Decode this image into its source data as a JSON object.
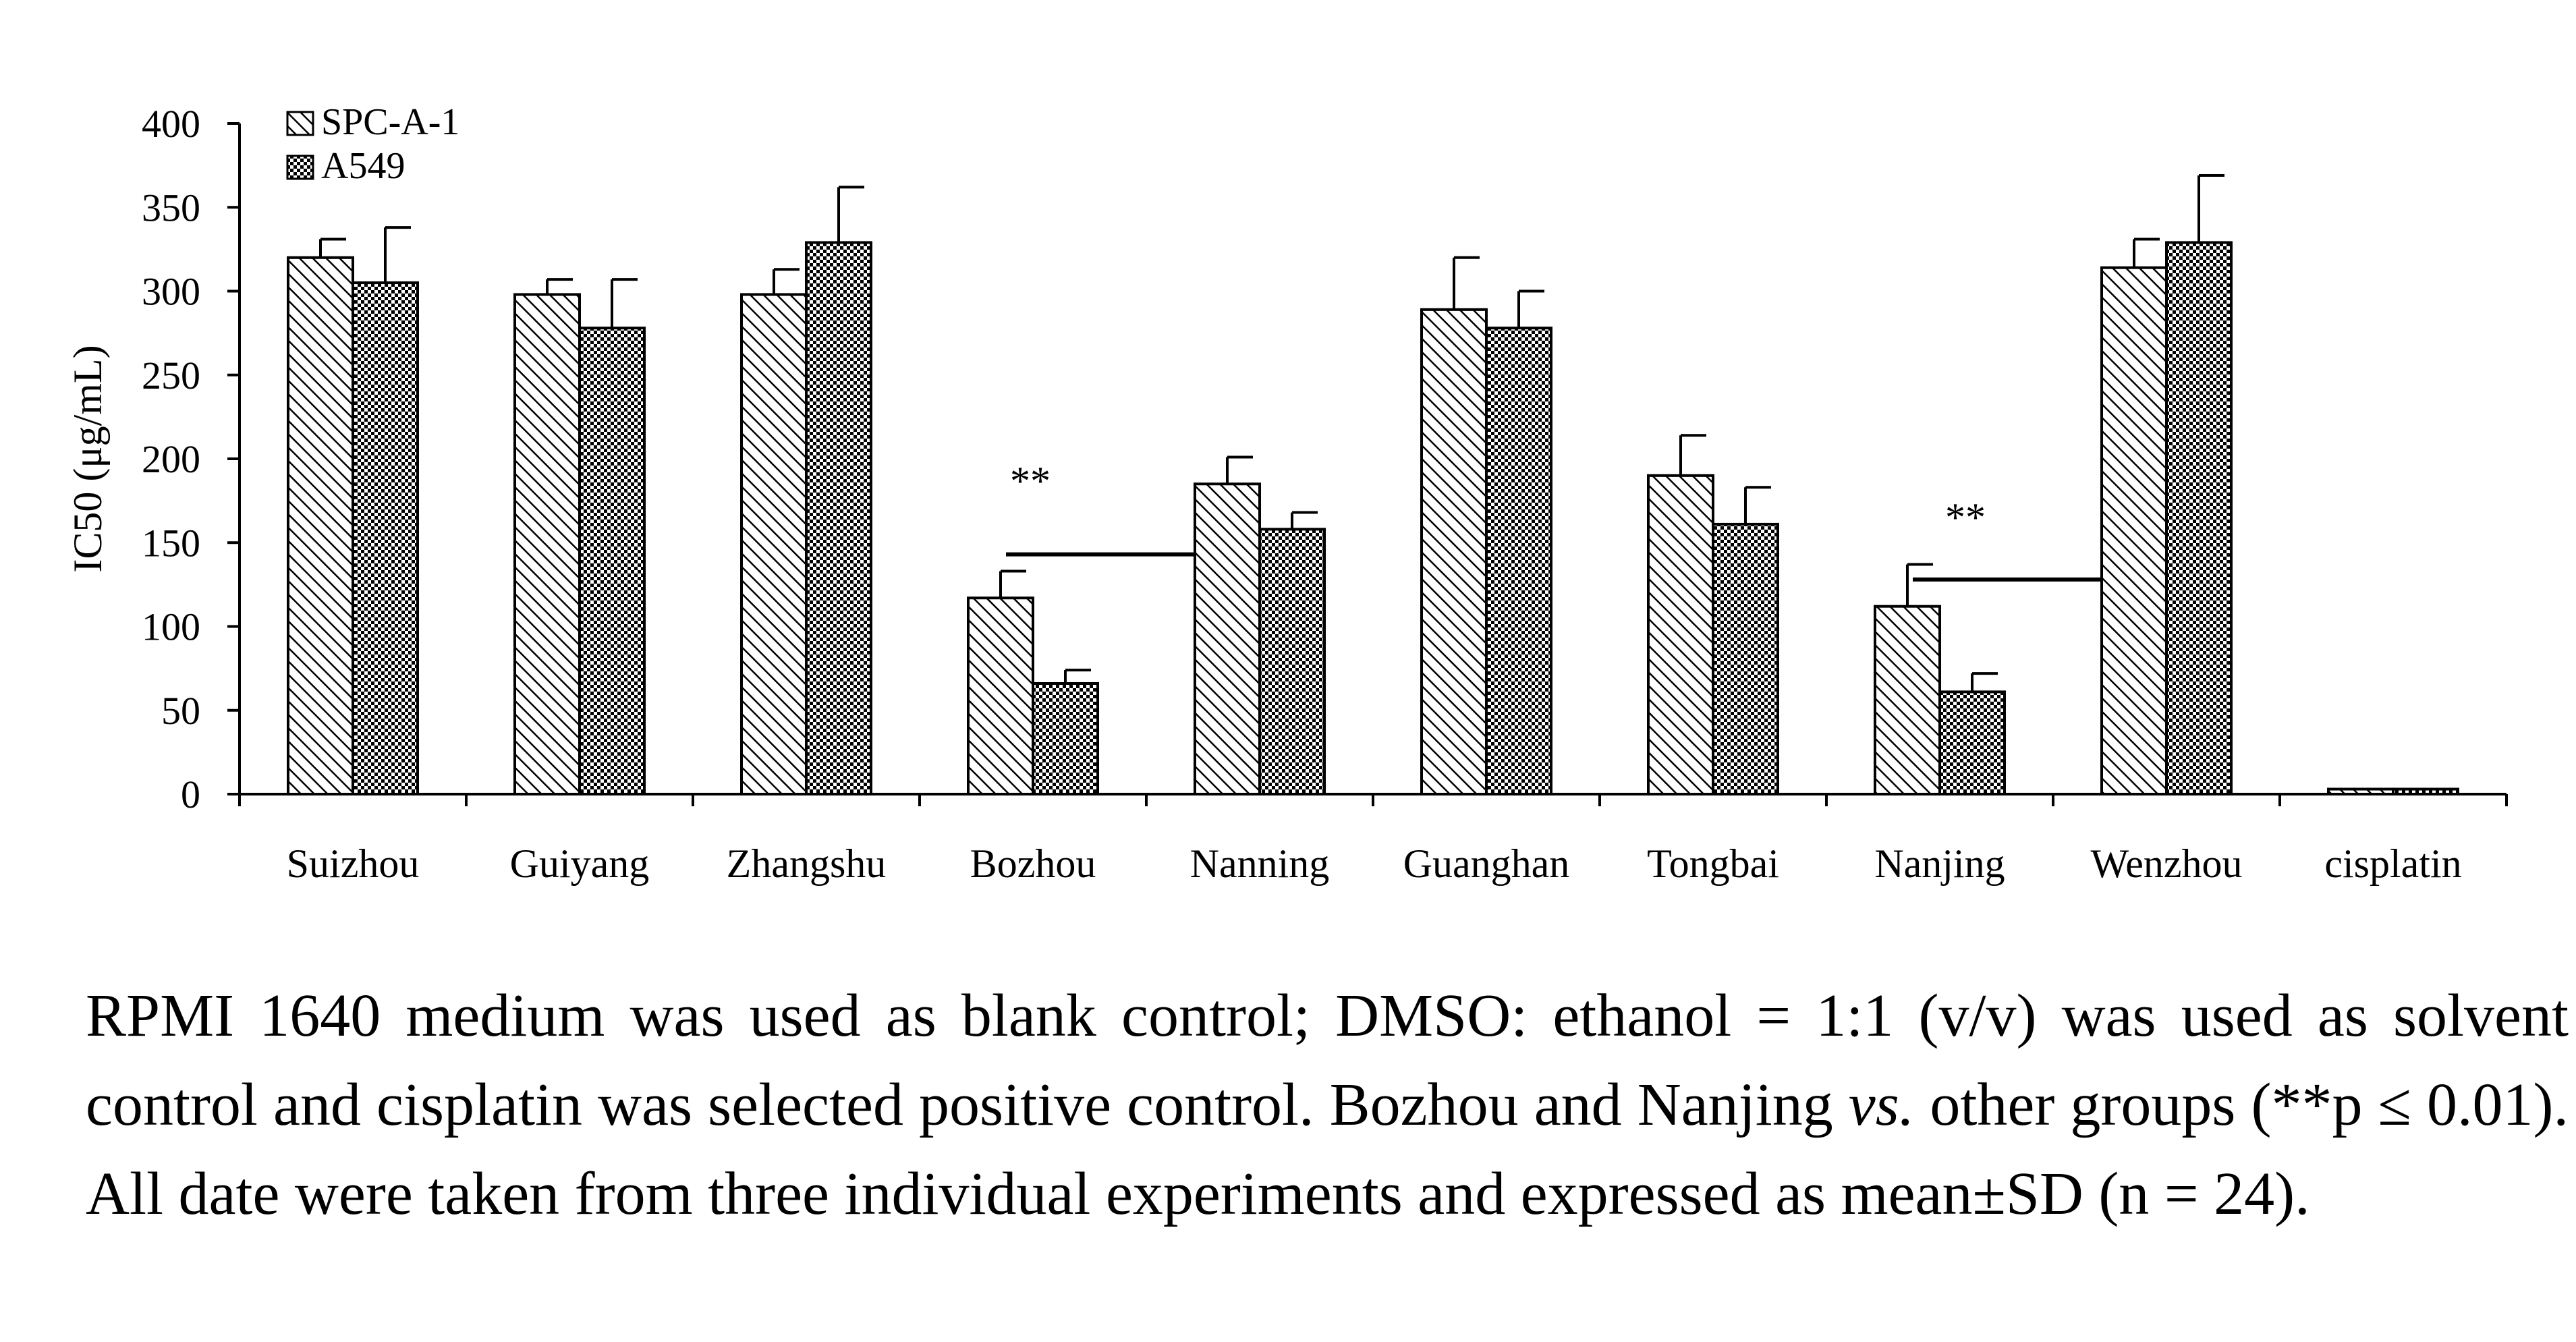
{
  "chart_data": {
    "type": "bar",
    "ylabel": "IC50 (μg/mL)",
    "xlabel": "",
    "ylim": [
      0,
      400
    ],
    "yticks": [
      "0",
      "50",
      "100",
      "150",
      "200",
      "250",
      "300",
      "350",
      "400"
    ],
    "categories": [
      "Suizhou",
      "Guiyang",
      "Zhangshu",
      "Bozhou",
      "Nanning",
      "Guanghan",
      "Tongbai",
      "Nanjing",
      "Wenzhou",
      "cisplatin"
    ],
    "series": [
      {
        "name": "SPC-A-1",
        "pattern": "diagonal-hatch",
        "values": [
          320,
          298,
          298,
          117,
          185,
          289,
          190,
          112,
          314,
          3
        ],
        "errors": [
          11,
          9,
          15,
          16,
          16,
          31,
          24,
          25,
          17,
          0
        ]
      },
      {
        "name": "A549",
        "pattern": "cross-hatch",
        "values": [
          305,
          278,
          329,
          66,
          158,
          278,
          161,
          61,
          329,
          3
        ],
        "errors": [
          33,
          29,
          33,
          8,
          10,
          22,
          22,
          11,
          40,
          0
        ]
      }
    ],
    "legend_position": "top-left",
    "annotations": [
      {
        "text": "**",
        "category": "Bozhou"
      },
      {
        "text": "**",
        "category": "Nanjing"
      }
    ],
    "bracket_lines": [
      {
        "from_category": "Bozhou",
        "to_category": "Nanning",
        "y_value": 143
      },
      {
        "from_category": "Nanjing",
        "to_category": "Wenzhou",
        "y_value": 128
      }
    ]
  },
  "caption": {
    "part1": "RPMI 1640 medium was used as blank control; DMSO: ethanol = 1:1 (v/v) was used as solvent control and cisplatin was selected positive control. Bozhou and Nanjing ",
    "italic": "vs.",
    "part2": " other groups (**p ≤ 0.01). All date were taken from three individual experiments and expressed as mean±SD (n = 24)."
  },
  "colors": {
    "ink": "#000000",
    "background": "#ffffff"
  }
}
